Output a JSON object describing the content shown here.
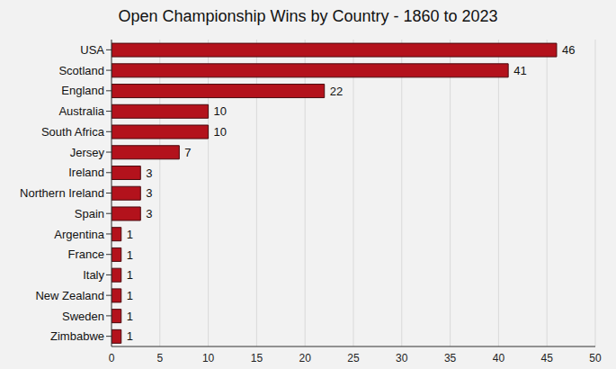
{
  "chart_data": {
    "type": "bar",
    "title": "Open Championship Wins by Country - 1860 to 2023",
    "orientation": "horizontal",
    "categories": [
      "USA",
      "Scotland",
      "England",
      "Australia",
      "South Africa",
      "Jersey",
      "Ireland",
      "Northern Ireland",
      "Spain",
      "Argentina",
      "France",
      "Italy",
      "New Zealand",
      "Sweden",
      "Zimbabwe"
    ],
    "values": [
      46,
      41,
      22,
      10,
      10,
      7,
      3,
      3,
      3,
      1,
      1,
      1,
      1,
      1,
      1
    ],
    "color": "#b3121c",
    "xlim": [
      0,
      50
    ],
    "xticks": [
      0,
      5,
      10,
      15,
      20,
      25,
      30,
      35,
      40,
      45,
      50
    ],
    "grid": true,
    "data_labels": true
  }
}
